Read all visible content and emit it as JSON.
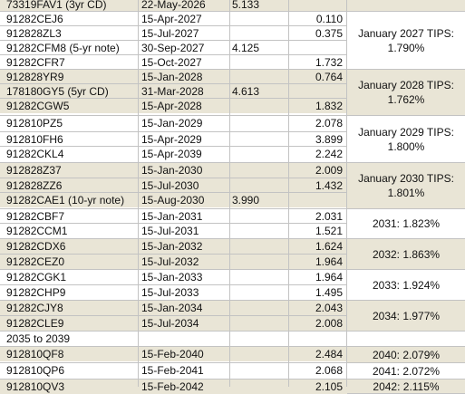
{
  "rows": [
    {
      "id": "73319FAV1 (3yr CD)",
      "date": "22-May-2026",
      "col3": "5.133",
      "col4": ""
    },
    {
      "id": "91282CEJ6",
      "date": "15-Apr-2027",
      "col3": "",
      "col4": "0.110"
    },
    {
      "id": "912828ZL3",
      "date": "15-Jul-2027",
      "col3": "",
      "col4": "0.375"
    },
    {
      "id": "91282CFM8 (5-yr note)",
      "date": "30-Sep-2027",
      "col3": "4.125",
      "col4": ""
    },
    {
      "id": "91282CFR7",
      "date": "15-Oct-2027",
      "col3": "",
      "col4": "1.732"
    },
    {
      "id": "912828YR9",
      "date": "15-Jan-2028",
      "col3": "",
      "col4": "0.764"
    },
    {
      "id": "178180GY5 (5yr CD)",
      "date": "31-Mar-2028",
      "col3": "4.613",
      "col4": ""
    },
    {
      "id": "91282CGW5",
      "date": "15-Apr-2028",
      "col3": "",
      "col4": "1.832"
    },
    {
      "id": "912810PZ5",
      "date": "15-Jan-2029",
      "col3": "",
      "col4": "2.078"
    },
    {
      "id": "912810FH6",
      "date": "15-Apr-2029",
      "col3": "",
      "col4": "3.899"
    },
    {
      "id": "91282CKL4",
      "date": "15-Apr-2039",
      "col3": "",
      "col4": "2.242"
    },
    {
      "id": "912828Z37",
      "date": "15-Jan-2030",
      "col3": "",
      "col4": "2.009"
    },
    {
      "id": "912828ZZ6",
      "date": "15-Jul-2030",
      "col3": "",
      "col4": "1.432"
    },
    {
      "id": "91282CAE1 (10-yr note)",
      "date": "15-Aug-2030",
      "col3": "3.990",
      "col4": ""
    },
    {
      "id": "91282CBF7",
      "date": "15-Jan-2031",
      "col3": "",
      "col4": "2.031"
    },
    {
      "id": "91282CCM1",
      "date": "15-Jul-2031",
      "col3": "",
      "col4": "1.521"
    },
    {
      "id": "91282CDX6",
      "date": "15-Jan-2032",
      "col3": "",
      "col4": "1.624"
    },
    {
      "id": "91282CEZ0",
      "date": "15-Jul-2032",
      "col3": "",
      "col4": "1.964"
    },
    {
      "id": "91282CGK1",
      "date": "15-Jan-2033",
      "col3": "",
      "col4": "1.964"
    },
    {
      "id": "91282CHP9",
      "date": "15-Jul-2033",
      "col3": "",
      "col4": "1.495"
    },
    {
      "id": "91282CJY8",
      "date": "15-Jan-2034",
      "col3": "",
      "col4": "2.043"
    },
    {
      "id": "91282CLE9",
      "date": "15-Jul-2034",
      "col3": "",
      "col4": "2.008"
    },
    {
      "id": "2035 to 2039",
      "date": "",
      "col3": "",
      "col4": ""
    },
    {
      "id": "912810QF8",
      "date": "15-Feb-2040",
      "col3": "",
      "col4": "2.484"
    },
    {
      "id": "912810QP6",
      "date": "15-Feb-2041",
      "col3": "",
      "col4": "2.068"
    },
    {
      "id": "912810QV3",
      "date": "15-Feb-2042",
      "col3": "",
      "col4": "2.105"
    }
  ],
  "notes": [
    {
      "text": "January 2027 TIPS: 1.790%"
    },
    {
      "text": "January 2028 TIPS: 1.762%"
    },
    {
      "text": "January 2029 TIPS: 1.800%"
    },
    {
      "text": "January 2030 TIPS: 1.801%"
    },
    {
      "text": "2031: 1.823%"
    },
    {
      "text": "2032: 1.863%"
    },
    {
      "text": "2033: 1.924%"
    },
    {
      "text": "2034: 1.977%"
    },
    {
      "text": ""
    },
    {
      "text": "2040: 2.079%"
    },
    {
      "text": "2041: 2.072%"
    },
    {
      "text": "2042: 2.115%"
    }
  ],
  "colors": {
    "band": "#e9e5d6",
    "plain": "#ffffff",
    "grid": "#c3c3c3",
    "text": "#111111"
  }
}
